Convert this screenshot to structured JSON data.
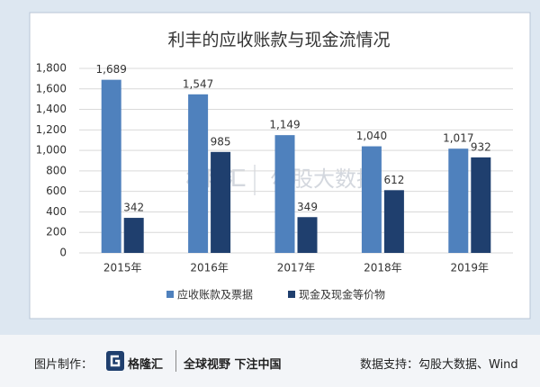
{
  "chart_data": {
    "type": "bar",
    "title": "利丰的应收账款与现金流情况",
    "categories": [
      "2015年",
      "2016年",
      "2017年",
      "2018年",
      "2019年"
    ],
    "series": [
      {
        "name": "应收账款及票据",
        "color": "#4f81bd",
        "values": [
          1689,
          1547,
          1149,
          1040,
          1017
        ],
        "value_labels": [
          "1,689",
          "1,547",
          "1,149",
          "1,040",
          "1,017"
        ]
      },
      {
        "name": "现金及现金等价物",
        "color": "#1f3f6e",
        "values": [
          342,
          985,
          349,
          612,
          932
        ]
      }
    ],
    "ylim": [
      0,
      1800
    ],
    "yticks": [
      0,
      200,
      400,
      600,
      800,
      {
        "value": 1000,
        "label": "1,000"
      },
      {
        "value": 1200,
        "label": "1,200"
      },
      {
        "value": 1400,
        "label": "1,400"
      },
      {
        "value": 1600,
        "label": "1,600"
      },
      {
        "value": 1800,
        "label": "1,800"
      }
    ],
    "grid": true,
    "legend": "bottom"
  },
  "watermark": {
    "brand": "格隆汇",
    "partner": "勾股大数据"
  },
  "footer": {
    "made_by": "图片制作：",
    "brand": "格隆汇",
    "slogan": "全球视野 下注中国",
    "source": "数据支持：勾股大数据、Wind"
  }
}
